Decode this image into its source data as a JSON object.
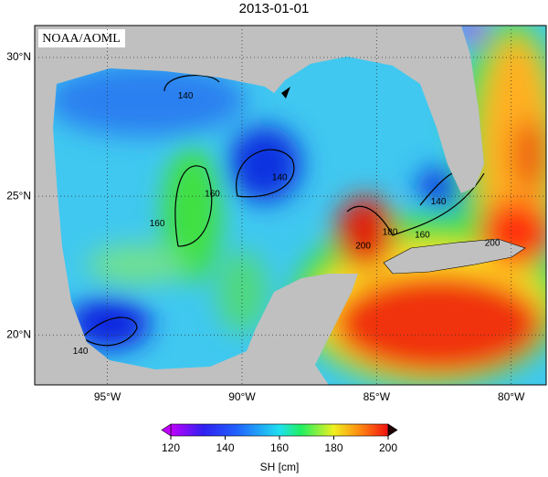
{
  "title": "2013-01-01",
  "watermark": "NOAA/AOML",
  "map": {
    "lon_lim": [
      -97.7,
      -78.7
    ],
    "lat_lim": [
      18.2,
      31.15
    ],
    "lat_ticks": [
      {
        "value": 30,
        "label": "30°N"
      },
      {
        "value": 25,
        "label": "25°N"
      },
      {
        "value": 20,
        "label": "20°N"
      }
    ],
    "lon_ticks": [
      {
        "value": -95,
        "label": "95°W"
      },
      {
        "value": -90,
        "label": "90°W"
      },
      {
        "value": -85,
        "label": "85°W"
      },
      {
        "value": -80,
        "label": "80°W"
      }
    ],
    "contour_labels": [
      {
        "value": 140,
        "lon": -92.1,
        "lat": 28.6
      },
      {
        "value": 140,
        "lon": -88.6,
        "lat": 25.66
      },
      {
        "value": 160,
        "lon": -91.1,
        "lat": 25.07
      },
      {
        "value": 160,
        "lon": -93.15,
        "lat": 24.0
      },
      {
        "value": 140,
        "lon": -96.0,
        "lat": 19.4
      },
      {
        "value": 140,
        "lon": -82.7,
        "lat": 24.8
      },
      {
        "value": 160,
        "lon": -83.3,
        "lat": 23.6
      },
      {
        "value": 180,
        "lon": -84.5,
        "lat": 23.7
      },
      {
        "value": 200,
        "lon": -85.5,
        "lat": 23.2
      },
      {
        "value": 200,
        "lon": -80.7,
        "lat": 23.3
      }
    ]
  },
  "colorbar": {
    "label": "SH [cm]",
    "lim": [
      120,
      200
    ],
    "ticks": [
      120,
      140,
      160,
      180,
      200
    ]
  }
}
